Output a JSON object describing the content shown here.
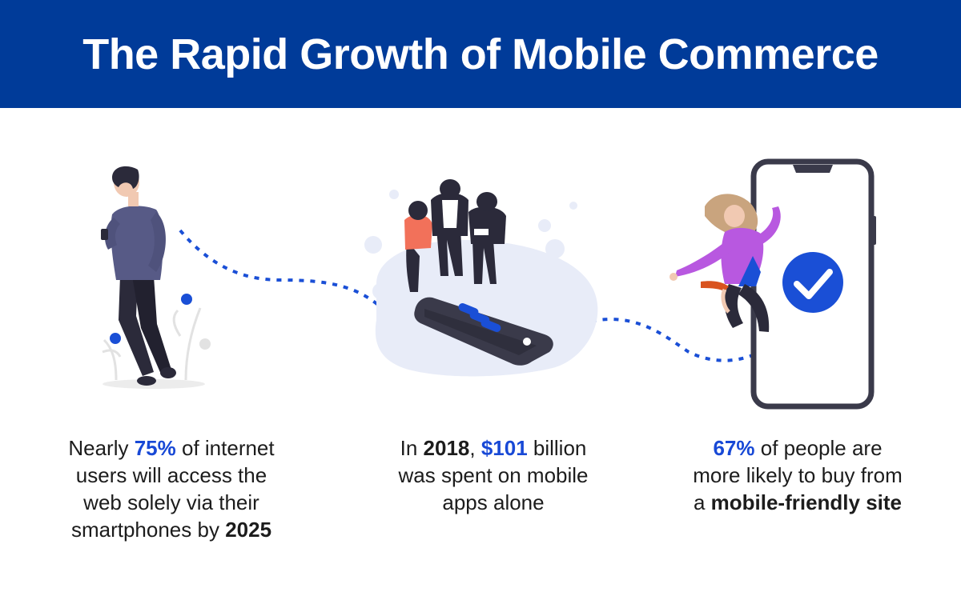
{
  "header": {
    "title": "The Rapid Growth of Mobile Commerce",
    "background": "#003b99"
  },
  "colors": {
    "accent": "#1849d6",
    "text": "#1c1c1c",
    "dots": "#1a4fd6"
  },
  "stats": [
    {
      "l1a": "Nearly ",
      "l1hl": "75%",
      "l1b": " of internet",
      "l2": "users will access the",
      "l3": "web solely via their",
      "l4a": "smartphones by ",
      "l4b": "2025"
    },
    {
      "l1a": "In ",
      "l1b": "2018",
      "l1c": ", ",
      "l1hl": "$101",
      "l1d": " billion",
      "l2": "was spent on mobile",
      "l3": "apps alone"
    },
    {
      "l1hl": "67%",
      "l1a": " of people are",
      "l2": "more likely to buy from",
      "l3a": "a ",
      "l3b": "mobile-friendly site"
    }
  ],
  "icons": [
    "person-with-phone-icon",
    "group-with-phone-icon",
    "woman-jumping-icon",
    "smartphone-frame-icon",
    "checkmark-icon"
  ]
}
